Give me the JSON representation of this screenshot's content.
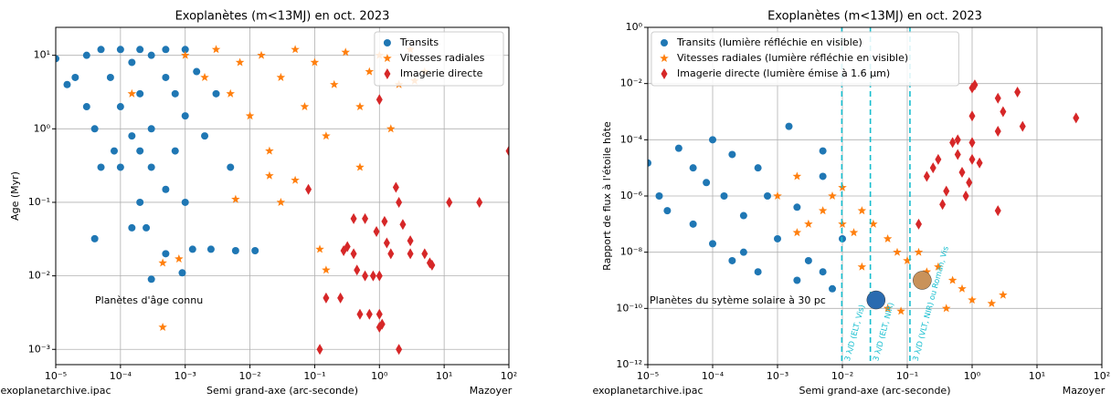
{
  "chart_data": [
    {
      "type": "scatter",
      "title": "Exoplanètes (m<13MJ) en oct. 2023",
      "xlabel": "Semi grand-axe (arc-seconde)",
      "ylabel": "Age (Myr)",
      "source": "exoplanetarchive.ipac",
      "credit": "Mazoyer",
      "annotation": "Planètes d'âge connu",
      "xscale": "log",
      "yscale": "log",
      "grid": true,
      "legend": "upper right",
      "xlim": [
        1e-05,
        100
      ],
      "ylim": [
        0.00062,
        24
      ],
      "xticks": [
        {
          "value": 1e-05,
          "label": "10⁻⁵"
        },
        {
          "value": 0.0001,
          "label": "10⁻⁴"
        },
        {
          "value": 0.001,
          "label": "10⁻³"
        },
        {
          "value": 0.01,
          "label": "10⁻²"
        },
        {
          "value": 0.1,
          "label": "10⁻¹"
        },
        {
          "value": 1,
          "label": "10⁰"
        },
        {
          "value": 10,
          "label": "10¹"
        },
        {
          "value": 100,
          "label": "10²"
        }
      ],
      "yticks": [
        {
          "value": 0.001,
          "label": "10⁻³"
        },
        {
          "value": 0.01,
          "label": "10⁻²"
        },
        {
          "value": 0.1,
          "label": "10⁻¹"
        },
        {
          "value": 1,
          "label": "10⁰"
        },
        {
          "value": 10,
          "label": "10¹"
        }
      ],
      "series": [
        {
          "name": "Transits",
          "color": "#1f77b4",
          "marker": "o",
          "x": [
            1e-05,
            1.5e-05,
            2e-05,
            3e-05,
            3e-05,
            4e-05,
            5e-05,
            5e-05,
            7e-05,
            8e-05,
            0.0001,
            0.0001,
            0.0001,
            0.00015,
            0.00015,
            0.0002,
            0.0002,
            0.0002,
            0.0003,
            0.0003,
            0.0003,
            0.0005,
            0.0005,
            0.0005,
            0.0007,
            0.0007,
            0.001,
            0.001,
            0.0015,
            0.002,
            0.003,
            0.005,
            4e-05,
            0.00015,
            0.00025,
            0.0003,
            0.0009,
            0.0013,
            0.0025,
            0.006,
            0.012,
            0.001,
            0.0005,
            0.0002
          ],
          "y": [
            9,
            4,
            5,
            10,
            2,
            1,
            12,
            0.3,
            5,
            0.5,
            12,
            2,
            0.3,
            8,
            0.8,
            12,
            3,
            0.5,
            10,
            1,
            0.3,
            12,
            5,
            0.15,
            3,
            0.5,
            12,
            1.5,
            6,
            0.8,
            3,
            0.3,
            0.032,
            0.045,
            0.045,
            0.009,
            0.011,
            0.023,
            0.023,
            0.022,
            0.022,
            0.1,
            0.02,
            0.1
          ]
        },
        {
          "name": "Vitesses radiales",
          "color": "#ff7f0e",
          "marker": "*",
          "x": [
            0.001,
            0.002,
            0.003,
            0.005,
            0.007,
            0.01,
            0.015,
            0.02,
            0.03,
            0.05,
            0.07,
            0.1,
            0.15,
            0.2,
            0.3,
            0.5,
            0.7,
            1,
            1.5,
            2,
            3,
            5,
            0.03,
            0.05,
            0.006,
            0.02,
            0.12,
            0.00045,
            0.00045,
            0.0008,
            0.15,
            0.00015,
            3.5,
            0.5
          ],
          "y": [
            10,
            5,
            12,
            3,
            8,
            1.5,
            10,
            0.5,
            5,
            12,
            2,
            8,
            0.8,
            4,
            11,
            2,
            6,
            10,
            1,
            4,
            12,
            6,
            0.1,
            0.2,
            0.11,
            0.23,
            0.023,
            0.015,
            0.002,
            0.017,
            0.012,
            3,
            4.5,
            0.3
          ]
        },
        {
          "name": "Imagerie directe",
          "color": "#d62728",
          "marker": "d",
          "x": [
            0.08,
            0.12,
            0.15,
            0.25,
            0.28,
            0.32,
            0.4,
            0.4,
            0.45,
            0.5,
            0.6,
            0.6,
            0.7,
            0.8,
            0.9,
            1,
            1,
            1.1,
            1.2,
            1.3,
            1.5,
            1.8,
            2,
            2,
            2.3,
            3,
            3,
            5,
            6,
            6.5,
            12,
            35,
            1,
            100,
            1
          ],
          "y": [
            0.15,
            0.001,
            0.005,
            0.005,
            0.022,
            0.025,
            0.06,
            0.02,
            0.012,
            0.003,
            0.06,
            0.01,
            0.003,
            0.01,
            0.04,
            0.002,
            0.003,
            0.0022,
            0.055,
            0.028,
            0.02,
            0.16,
            0.001,
            0.1,
            0.05,
            0.02,
            0.03,
            0.02,
            0.015,
            0.014,
            0.1,
            0.1,
            2.5,
            0.5,
            0.01
          ]
        }
      ]
    },
    {
      "type": "scatter",
      "title": "Exoplanètes (m<13MJ) en oct. 2023",
      "xlabel": "Semi grand-axe (arc-seconde)",
      "ylabel": "Rapport de flux à l'étoile hôte",
      "source": "exoplanetarchive.ipac",
      "credit": "Mazoyer",
      "annotation": "Planètes du sytème solaire à 30 pc",
      "xscale": "log",
      "yscale": "log",
      "grid": true,
      "legend": "upper left",
      "xlim": [
        1e-05,
        100
      ],
      "ylim": [
        1e-12,
        1
      ],
      "xticks": [
        {
          "value": 1e-05,
          "label": "10⁻⁵"
        },
        {
          "value": 0.0001,
          "label": "10⁻⁴"
        },
        {
          "value": 0.001,
          "label": "10⁻³"
        },
        {
          "value": 0.01,
          "label": "10⁻²"
        },
        {
          "value": 0.1,
          "label": "10⁻¹"
        },
        {
          "value": 1,
          "label": "10⁰"
        },
        {
          "value": 10,
          "label": "10¹"
        },
        {
          "value": 100,
          "label": "10²"
        }
      ],
      "yticks": [
        {
          "value": 1e-12,
          "label": "10⁻¹²"
        },
        {
          "value": 1e-10,
          "label": "10⁻¹⁰"
        },
        {
          "value": 1e-08,
          "label": "10⁻⁸"
        },
        {
          "value": 1e-06,
          "label": "10⁻⁶"
        },
        {
          "value": 0.0001,
          "label": "10⁻⁴"
        },
        {
          "value": 0.01,
          "label": "10⁻²"
        },
        {
          "value": 1,
          "label": "10⁰"
        }
      ],
      "vlines": [
        {
          "x": 0.0098,
          "label": "3 λ/D (ELT, Vis)"
        },
        {
          "x": 0.027,
          "label": "3 λ/D (ELT, NIR)"
        },
        {
          "x": 0.11,
          "label": "3 λ/D (VLT, NIR) ou Roman, Vis"
        }
      ],
      "solar_system": {
        "x": [
          0.033,
          0.17
        ],
        "y": [
          2e-10,
          1e-09
        ],
        "colors": [
          "#2a6bb0",
          "#c9925a"
        ]
      },
      "series": [
        {
          "name": "Transits (lumière réfléchie en visible)",
          "color": "#1f77b4",
          "marker": "o",
          "x": [
            1e-05,
            1.5e-05,
            2e-05,
            3e-05,
            5e-05,
            5e-05,
            8e-05,
            0.0001,
            0.0001,
            0.00015,
            0.0002,
            0.0002,
            0.0003,
            0.0005,
            0.0005,
            0.0007,
            0.001,
            0.0015,
            0.002,
            0.002,
            0.003,
            0.005,
            0.005,
            0.007,
            0.01,
            0.005,
            0.0003
          ],
          "y": [
            1.5e-05,
            1e-06,
            3e-07,
            5e-05,
            1e-05,
            1e-07,
            3e-06,
            0.0001,
            2e-08,
            1e-06,
            3e-05,
            5e-09,
            2e-07,
            1e-05,
            2e-09,
            1e-06,
            3e-08,
            0.0003,
            4e-07,
            1e-09,
            5e-09,
            5e-06,
            2e-09,
            5e-10,
            3e-08,
            4e-05,
            1e-08
          ]
        },
        {
          "name": "Vitesses radiales (lumière réfléchie en visible)",
          "color": "#ff7f0e",
          "marker": "*",
          "x": [
            0.001,
            0.002,
            0.003,
            0.005,
            0.007,
            0.01,
            0.015,
            0.02,
            0.03,
            0.05,
            0.07,
            0.1,
            0.15,
            0.2,
            0.3,
            0.5,
            0.7,
            1,
            2,
            3,
            0.05,
            0.08,
            0.2,
            0.02,
            0.01,
            0.002,
            0.4
          ],
          "y": [
            1e-06,
            5e-06,
            1e-07,
            3e-07,
            1e-06,
            2e-06,
            5e-08,
            3e-07,
            1e-07,
            3e-08,
            1e-08,
            5e-09,
            1e-08,
            2e-09,
            3e-09,
            1e-09,
            5e-10,
            2e-10,
            1.5e-10,
            3e-10,
            1e-10,
            8e-11,
            1e-09,
            3e-09,
            1e-07,
            5e-08,
            1e-10
          ]
        },
        {
          "name": "Imagerie directe (lumière émise à 1.6 µm)",
          "color": "#d62728",
          "marker": "d",
          "x": [
            0.15,
            0.2,
            0.25,
            0.3,
            0.35,
            0.4,
            0.5,
            0.6,
            0.6,
            0.7,
            0.8,
            0.9,
            1,
            1,
            1,
            1.1,
            1,
            1.3,
            2.5,
            2.5,
            2.5,
            3,
            5,
            6,
            40
          ],
          "y": [
            1e-07,
            5e-06,
            1e-05,
            2e-05,
            5e-07,
            1.5e-06,
            8e-05,
            0.0001,
            3e-05,
            7e-06,
            1e-06,
            3e-06,
            0.007,
            2e-05,
            8e-05,
            0.009,
            0.0007,
            1.5e-05,
            0.003,
            0.0002,
            3e-07,
            0.001,
            0.005,
            0.0003,
            0.0006
          ]
        }
      ]
    }
  ]
}
